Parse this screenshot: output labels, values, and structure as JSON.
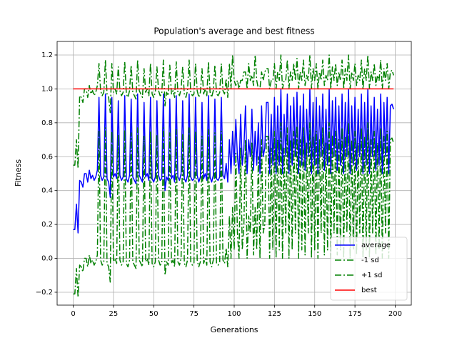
{
  "chart_data": {
    "type": "line",
    "title": "Population's average and best fitness",
    "x_label": "Generations",
    "y_label": "Fitness",
    "x": [
      0,
      1,
      2,
      3,
      4,
      5,
      6,
      7,
      8,
      9,
      10,
      11,
      12,
      13,
      14,
      15,
      16,
      17,
      18,
      19,
      20,
      21,
      22,
      23,
      24,
      25,
      26,
      27,
      28,
      29,
      30,
      31,
      32,
      33,
      34,
      35,
      36,
      37,
      38,
      39,
      40,
      41,
      42,
      43,
      44,
      45,
      46,
      47,
      48,
      49,
      50,
      51,
      52,
      53,
      54,
      55,
      56,
      57,
      58,
      59,
      60,
      61,
      62,
      63,
      64,
      65,
      66,
      67,
      68,
      69,
      70,
      71,
      72,
      73,
      74,
      75,
      76,
      77,
      78,
      79,
      80,
      81,
      82,
      83,
      84,
      85,
      86,
      87,
      88,
      89,
      90,
      91,
      92,
      93,
      94,
      95,
      96,
      97,
      98,
      99,
      100,
      101,
      102,
      103,
      104,
      105,
      106,
      107,
      108,
      109,
      110,
      111,
      112,
      113,
      114,
      115,
      116,
      117,
      118,
      119,
      120,
      121,
      122,
      123,
      124,
      125,
      126,
      127,
      128,
      129,
      130,
      131,
      132,
      133,
      134,
      135,
      136,
      137,
      138,
      139,
      140,
      141,
      142,
      143,
      144,
      145,
      146,
      147,
      148,
      149,
      150,
      151,
      152,
      153,
      154,
      155,
      156,
      157,
      158,
      159,
      160,
      161,
      162,
      163,
      164,
      165,
      166,
      167,
      168,
      169,
      170,
      171,
      172,
      173,
      174,
      175,
      176,
      177,
      178,
      179,
      180,
      181,
      182,
      183,
      184,
      185,
      186,
      187,
      188,
      189,
      190,
      191,
      192,
      193,
      194,
      195,
      196,
      197,
      198,
      199
    ],
    "series": [
      {
        "name": "average",
        "color": "#0000ff",
        "linestyle": "solid",
        "values": [
          0.17,
          0.17,
          0.32,
          0.15,
          0.46,
          0.45,
          0.42,
          0.5,
          0.5,
          0.45,
          0.52,
          0.47,
          0.49,
          0.46,
          0.48,
          0.52,
          0.95,
          0.49,
          0.46,
          0.48,
          0.97,
          0.47,
          0.45,
          0.36,
          0.95,
          0.48,
          0.5,
          0.47,
          0.93,
          0.49,
          0.46,
          0.48,
          0.96,
          0.47,
          0.45,
          0.49,
          0.94,
          0.48,
          0.46,
          0.44,
          0.97,
          0.49,
          0.47,
          0.45,
          0.92,
          0.48,
          0.5,
          0.46,
          0.95,
          0.47,
          0.45,
          0.48,
          0.93,
          0.49,
          0.46,
          0.47,
          0.97,
          0.4,
          0.48,
          0.46,
          0.94,
          0.47,
          0.49,
          0.45,
          0.96,
          0.48,
          0.46,
          0.5,
          0.93,
          0.47,
          0.45,
          0.49,
          0.97,
          0.48,
          0.46,
          0.47,
          0.95,
          0.49,
          0.45,
          0.48,
          0.92,
          0.47,
          0.5,
          0.46,
          0.96,
          0.48,
          0.45,
          0.49,
          0.94,
          0.47,
          0.46,
          0.48,
          0.95,
          0.49,
          0.47,
          0.56,
          0.45,
          0.7,
          0.5,
          0.75,
          0.55,
          0.82,
          0.6,
          0.5,
          0.85,
          0.55,
          0.65,
          0.9,
          0.5,
          0.7,
          0.6,
          0.88,
          0.52,
          0.75,
          0.55,
          0.8,
          0.5,
          0.9,
          0.6,
          0.65,
          0.92,
          0.92,
          0.5,
          0.85,
          0.55,
          0.95,
          0.5,
          0.9,
          0.55,
          1.0,
          0.5,
          0.85,
          0.6,
          0.97,
          0.5,
          0.9,
          0.55,
          0.95,
          0.6,
          0.98,
          0.5,
          0.9,
          0.55,
          0.97,
          0.52,
          0.88,
          0.6,
          1.0,
          0.5,
          0.92,
          0.55,
          0.95,
          0.5,
          0.9,
          0.6,
          0.97,
          0.52,
          0.88,
          0.55,
          1.0,
          0.5,
          0.93,
          0.6,
          0.95,
          0.52,
          0.9,
          0.55,
          0.97,
          0.5,
          0.92,
          0.6,
          1.0,
          0.5,
          0.9,
          0.55,
          0.95,
          0.52,
          0.88,
          0.6,
          0.97,
          0.5,
          0.92,
          0.55,
          1.0,
          0.5,
          0.9,
          0.6,
          0.95,
          0.52,
          0.88,
          0.55,
          0.97,
          0.5,
          0.92,
          0.6,
          0.95,
          0.5,
          0.9,
          0.91,
          0.88
        ]
      },
      {
        "name": "-1 sd",
        "color": "#008000",
        "linestyle": "dashdot",
        "values": [
          -0.21,
          -0.21,
          -0.06,
          -0.23,
          -0.04,
          -0.05,
          -0.08,
          0,
          0,
          -0.05,
          0.02,
          -0.03,
          -0.01,
          -0.04,
          -0.02,
          0.02,
          0.75,
          -0.01,
          -0.04,
          -0.02,
          0.77,
          -0.03,
          -0.05,
          -0.14,
          0.75,
          -0.02,
          0,
          -0.03,
          0.73,
          -0.01,
          -0.04,
          -0.02,
          0.76,
          -0.03,
          -0.05,
          -0.01,
          0.74,
          -0.02,
          -0.04,
          -0.06,
          0.77,
          -0.01,
          -0.03,
          -0.05,
          0.72,
          -0.02,
          0,
          -0.04,
          0.75,
          -0.03,
          -0.05,
          -0.02,
          0.73,
          -0.01,
          -0.04,
          -0.03,
          0.77,
          -0.1,
          -0.02,
          -0.04,
          0.74,
          -0.03,
          -0.01,
          -0.05,
          0.76,
          -0.02,
          -0.04,
          0,
          0.73,
          -0.03,
          -0.05,
          -0.01,
          0.77,
          -0.02,
          -0.04,
          -0.03,
          0.75,
          -0.01,
          -0.05,
          -0.02,
          0.72,
          -0.03,
          0,
          -0.04,
          0.76,
          -0.02,
          -0.05,
          -0.01,
          0.74,
          -0.03,
          -0.04,
          -0.02,
          0.75,
          -0.01,
          -0.03,
          0.06,
          -0.05,
          0.25,
          0,
          0.3,
          0.05,
          0.62,
          0.15,
          0,
          0.65,
          0.05,
          0.2,
          0.7,
          0,
          0.25,
          0.15,
          0.68,
          0.02,
          0.3,
          0.05,
          0.6,
          0,
          0.7,
          0.15,
          0.2,
          0.72,
          0.72,
          0,
          0.65,
          0.05,
          0.75,
          0,
          0.7,
          0.05,
          0.8,
          0,
          0.65,
          0.15,
          0.77,
          0,
          0.7,
          0.05,
          0.75,
          0.15,
          0.78,
          0,
          0.7,
          0.05,
          0.77,
          0.02,
          0.68,
          0.15,
          0.8,
          0,
          0.72,
          0.05,
          0.75,
          0,
          0.7,
          0.15,
          0.77,
          0.02,
          0.68,
          0.05,
          0.8,
          0,
          0.73,
          0.15,
          0.75,
          0.02,
          0.7,
          0.05,
          0.77,
          0,
          0.72,
          0.15,
          0.8,
          0,
          0.7,
          0.05,
          0.75,
          0.02,
          0.68,
          0.15,
          0.77,
          0,
          0.72,
          0.05,
          0.8,
          0,
          0.7,
          0.15,
          0.75,
          0.02,
          0.68,
          0.05,
          0.77,
          0,
          0.72,
          0.15,
          0.75,
          0,
          0.7,
          0.71,
          0.68
        ]
      },
      {
        "name": "+1 sd",
        "color": "#008000",
        "linestyle": "dashdot",
        "values": [
          0.55,
          0.55,
          0.7,
          0.53,
          0.96,
          0.95,
          0.92,
          1,
          1,
          0.95,
          1.02,
          0.97,
          0.99,
          0.96,
          0.98,
          1.02,
          1.15,
          0.99,
          0.96,
          0.98,
          1.17,
          0.97,
          0.95,
          0.86,
          1.15,
          0.98,
          1,
          0.97,
          1.13,
          0.99,
          0.96,
          0.98,
          1.16,
          0.97,
          0.95,
          0.99,
          1.14,
          0.98,
          0.96,
          0.94,
          1.17,
          0.99,
          0.97,
          0.95,
          1.12,
          0.98,
          1,
          0.96,
          1.15,
          0.97,
          0.95,
          0.98,
          1.13,
          0.99,
          0.96,
          0.97,
          1.17,
          0.9,
          0.98,
          0.96,
          1.14,
          0.97,
          0.99,
          0.95,
          1.16,
          0.98,
          0.96,
          1,
          1.13,
          0.97,
          0.95,
          0.99,
          1.17,
          0.98,
          0.96,
          0.97,
          1.15,
          0.99,
          0.95,
          0.98,
          1.12,
          0.97,
          1,
          0.96,
          1.16,
          0.98,
          0.95,
          0.99,
          1.14,
          0.97,
          0.96,
          0.98,
          1.15,
          0.99,
          0.97,
          1.06,
          0.95,
          1.15,
          1,
          1.2,
          1.05,
          1.02,
          1.05,
          1,
          1.05,
          1.05,
          1.1,
          1.1,
          1,
          1.15,
          1.05,
          1.08,
          1.02,
          1.2,
          1.05,
          1,
          1,
          1.1,
          1.05,
          1.1,
          1.12,
          1.12,
          1,
          1.05,
          1.05,
          1.15,
          1,
          1.1,
          1.05,
          1.2,
          1,
          1.05,
          1.05,
          1.17,
          1,
          1.1,
          1.05,
          1.15,
          1.05,
          1.18,
          1,
          1.1,
          1.05,
          1.17,
          1.02,
          1.08,
          1.05,
          1.2,
          1,
          1.12,
          1.05,
          1.15,
          1,
          1.1,
          1.05,
          1.17,
          1.02,
          1.08,
          1.05,
          1.2,
          1,
          1.13,
          1.05,
          1.15,
          1.02,
          1.1,
          1.05,
          1.17,
          1,
          1.12,
          1.05,
          1.2,
          1,
          1.1,
          1.05,
          1.15,
          1.02,
          1.08,
          1.05,
          1.17,
          1,
          1.12,
          1.05,
          1.2,
          1,
          1.1,
          1.05,
          1.15,
          1.02,
          1.08,
          1.05,
          1.17,
          1,
          1.12,
          1.05,
          1.15,
          1,
          1.1,
          1.11,
          1.08
        ]
      },
      {
        "name": "best",
        "color": "#ff0000",
        "linestyle": "solid",
        "values": [
          1,
          1,
          1,
          1,
          1,
          1,
          1,
          1,
          1,
          1,
          1,
          1,
          1,
          1,
          1,
          1,
          1,
          1,
          1,
          1,
          1,
          1,
          1,
          1,
          1,
          1,
          1,
          1,
          1,
          1,
          1,
          1,
          1,
          1,
          1,
          1,
          1,
          1,
          1,
          1,
          1,
          1,
          1,
          1,
          1,
          1,
          1,
          1,
          1,
          1,
          1,
          1,
          1,
          1,
          1,
          1,
          1,
          1,
          1,
          1,
          1,
          1,
          1,
          1,
          1,
          1,
          1,
          1,
          1,
          1,
          1,
          1,
          1,
          1,
          1,
          1,
          1,
          1,
          1,
          1,
          1,
          1,
          1,
          1,
          1,
          1,
          1,
          1,
          1,
          1,
          1,
          1,
          1,
          1,
          1,
          1,
          1,
          1,
          1,
          1,
          1,
          1,
          1,
          1,
          1,
          1,
          1,
          1,
          1,
          1,
          1,
          1,
          1,
          1,
          1,
          1,
          1,
          1,
          1,
          1,
          1,
          1,
          1,
          1,
          1,
          1,
          1,
          1,
          1,
          1,
          1,
          1,
          1,
          1,
          1,
          1,
          1,
          1,
          1,
          1,
          1,
          1,
          1,
          1,
          1,
          1,
          1,
          1,
          1,
          1,
          1,
          1,
          1,
          1,
          1,
          1,
          1,
          1,
          1,
          1,
          1,
          1,
          1,
          1,
          1,
          1,
          1,
          1,
          1,
          1,
          1,
          1,
          1,
          1,
          1,
          1,
          1,
          1,
          1,
          1,
          1,
          1,
          1,
          1,
          1,
          1,
          1,
          1,
          1,
          1,
          1,
          1,
          1,
          1,
          1,
          1,
          1,
          1,
          1,
          1
        ]
      }
    ],
    "xlim": [
      -10,
      210
    ],
    "ylim": [
      -0.276,
      1.28
    ],
    "xticks": [
      0,
      25,
      50,
      75,
      100,
      125,
      150,
      175,
      200
    ],
    "yticks": [
      {
        "value": -0.2,
        "label": "−0.2"
      },
      {
        "value": 0,
        "label": "0.0"
      },
      0.2,
      0.4,
      0.6,
      0.8,
      {
        "value": 1,
        "label": "1.0"
      },
      1.2
    ],
    "grid": true,
    "legend": "lower right"
  }
}
